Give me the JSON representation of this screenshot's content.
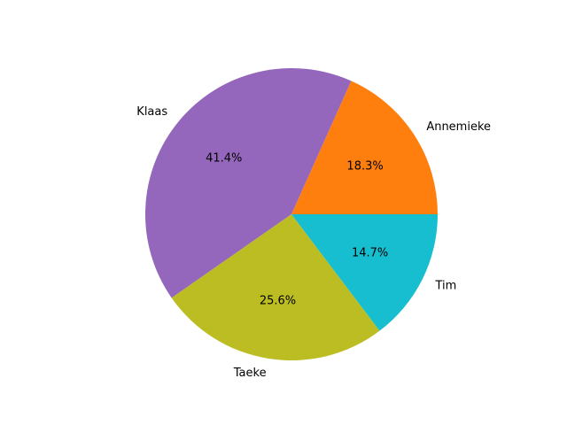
{
  "chart_data": {
    "type": "pie",
    "title": "",
    "start_angle_deg": 0,
    "direction": "counterclockwise",
    "slices": [
      {
        "label": "Annemieke",
        "value": 18.3,
        "pct_text": "18.3%",
        "color": "#ff7f0e"
      },
      {
        "label": "Klaas",
        "value": 41.4,
        "pct_text": "41.4%",
        "color": "#9467bd"
      },
      {
        "label": "Taeke",
        "value": 25.6,
        "pct_text": "25.6%",
        "color": "#bcbd22"
      },
      {
        "label": "Tim",
        "value": 14.7,
        "pct_text": "14.7%",
        "color": "#17becf"
      }
    ]
  }
}
